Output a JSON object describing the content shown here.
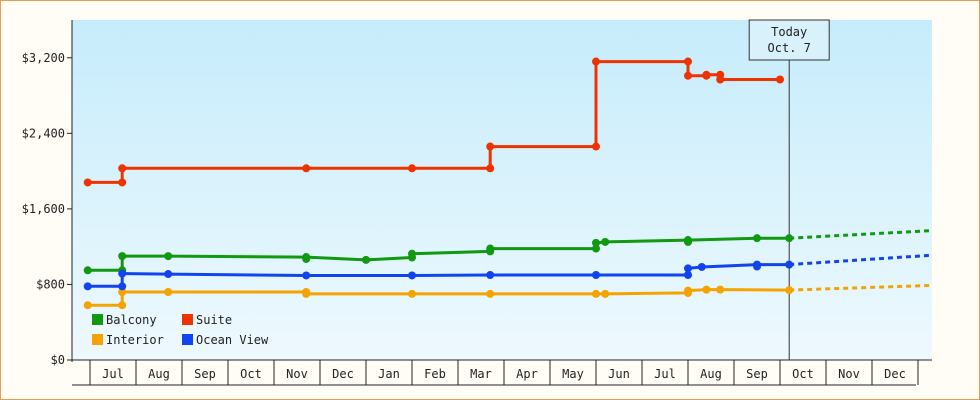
{
  "chart_data": {
    "type": "line",
    "ylim": [
      0,
      3600
    ],
    "y_ticks": [
      "$0",
      "$800",
      "$1,600",
      "$2,400",
      "$3,200"
    ],
    "y_tick_values": [
      0,
      800,
      1600,
      2400,
      3200
    ],
    "x_months": [
      "Jul",
      "Aug",
      "Sep",
      "Oct",
      "Nov",
      "Dec",
      "Jan",
      "Feb",
      "Mar",
      "Apr",
      "May",
      "Jun",
      "Jul",
      "Aug",
      "Sep",
      "Oct",
      "Nov",
      "Dec"
    ],
    "x_range_month_index": [
      -0.4,
      18.9
    ],
    "today": {
      "line1": "Today",
      "line2": "Oct. 7",
      "month_index": 15.2
    },
    "grid": false,
    "legend_placement": "bottom-left",
    "series": [
      {
        "name": "Balcony",
        "color": "#119911",
        "points": [
          [
            -0.05,
            950
          ],
          [
            0.7,
            950
          ],
          [
            0.7,
            1100
          ],
          [
            1.7,
            1100
          ],
          [
            4.7,
            1090
          ],
          [
            6.0,
            1060
          ],
          [
            7.0,
            1085
          ],
          [
            7.0,
            1125
          ],
          [
            8.7,
            1150
          ],
          [
            8.7,
            1180
          ],
          [
            11.0,
            1180
          ],
          [
            11.0,
            1240
          ],
          [
            11.2,
            1250
          ],
          [
            13.0,
            1270
          ],
          [
            14.5,
            1290
          ],
          [
            15.2,
            1290
          ]
        ],
        "markers": [
          [
            -0.05,
            950
          ],
          [
            0.7,
            950
          ],
          [
            0.7,
            1100
          ],
          [
            1.7,
            1100
          ],
          [
            4.7,
            1090
          ],
          [
            4.7,
            1070
          ],
          [
            6.0,
            1060
          ],
          [
            7.0,
            1085
          ],
          [
            7.0,
            1125
          ],
          [
            8.7,
            1150
          ],
          [
            8.7,
            1180
          ],
          [
            11.0,
            1180
          ],
          [
            11.0,
            1240
          ],
          [
            11.2,
            1250
          ],
          [
            13.0,
            1270
          ],
          [
            13.0,
            1250
          ],
          [
            14.5,
            1290
          ],
          [
            15.2,
            1290
          ]
        ],
        "forecast": [
          [
            15.2,
            1290
          ],
          [
            18.9,
            1370
          ]
        ]
      },
      {
        "name": "Suite",
        "color": "#ee3300",
        "points": [
          [
            -0.05,
            1880
          ],
          [
            0.7,
            1880
          ],
          [
            0.7,
            2030
          ],
          [
            4.7,
            2030
          ],
          [
            7.0,
            2030
          ],
          [
            8.7,
            2030
          ],
          [
            8.7,
            2260
          ],
          [
            11.0,
            2260
          ],
          [
            11.0,
            3160
          ],
          [
            13.0,
            3160
          ],
          [
            13.0,
            3010
          ],
          [
            13.4,
            3010
          ],
          [
            13.4,
            3020
          ],
          [
            13.7,
            3020
          ],
          [
            13.7,
            2970
          ],
          [
            15.0,
            2970
          ]
        ],
        "markers": [
          [
            -0.05,
            1880
          ],
          [
            0.7,
            1880
          ],
          [
            0.7,
            2030
          ],
          [
            4.7,
            2030
          ],
          [
            7.0,
            2030
          ],
          [
            8.7,
            2030
          ],
          [
            8.7,
            2260
          ],
          [
            11.0,
            2260
          ],
          [
            11.0,
            3160
          ],
          [
            13.0,
            3160
          ],
          [
            13.0,
            3010
          ],
          [
            13.4,
            3010
          ],
          [
            13.4,
            3020
          ],
          [
            13.7,
            3020
          ],
          [
            13.7,
            2970
          ],
          [
            15.0,
            2970
          ]
        ],
        "forecast": []
      },
      {
        "name": "Interior",
        "color": "#f5a300",
        "points": [
          [
            -0.05,
            580
          ],
          [
            0.7,
            580
          ],
          [
            0.7,
            720
          ],
          [
            1.7,
            720
          ],
          [
            4.7,
            720
          ],
          [
            4.7,
            700
          ],
          [
            7.0,
            700
          ],
          [
            8.7,
            700
          ],
          [
            11.0,
            700
          ],
          [
            11.2,
            700
          ],
          [
            13.0,
            710
          ],
          [
            13.0,
            735
          ],
          [
            13.4,
            745
          ],
          [
            13.7,
            745
          ],
          [
            15.2,
            740
          ]
        ],
        "markers": [
          [
            -0.05,
            580
          ],
          [
            0.7,
            580
          ],
          [
            0.7,
            720
          ],
          [
            1.7,
            720
          ],
          [
            4.7,
            720
          ],
          [
            4.7,
            700
          ],
          [
            7.0,
            700
          ],
          [
            8.7,
            700
          ],
          [
            11.0,
            700
          ],
          [
            11.2,
            700
          ],
          [
            13.0,
            710
          ],
          [
            13.0,
            735
          ],
          [
            13.4,
            745
          ],
          [
            13.7,
            745
          ],
          [
            15.2,
            740
          ]
        ],
        "forecast": [
          [
            15.2,
            740
          ],
          [
            18.9,
            790
          ]
        ]
      },
      {
        "name": "Ocean View",
        "color": "#1144ee",
        "points": [
          [
            -0.05,
            780
          ],
          [
            0.7,
            780
          ],
          [
            0.7,
            915
          ],
          [
            1.7,
            910
          ],
          [
            4.7,
            895
          ],
          [
            7.0,
            895
          ],
          [
            8.7,
            900
          ],
          [
            11.0,
            900
          ],
          [
            13.0,
            900
          ],
          [
            13.0,
            970
          ],
          [
            13.3,
            985
          ],
          [
            14.5,
            1010
          ],
          [
            15.2,
            1010
          ]
        ],
        "markers": [
          [
            -0.05,
            780
          ],
          [
            0.7,
            780
          ],
          [
            0.7,
            915
          ],
          [
            1.7,
            910
          ],
          [
            4.7,
            895
          ],
          [
            7.0,
            895
          ],
          [
            8.7,
            900
          ],
          [
            11.0,
            900
          ],
          [
            13.0,
            900
          ],
          [
            13.0,
            970
          ],
          [
            13.3,
            985
          ],
          [
            14.5,
            1010
          ],
          [
            14.5,
            990
          ],
          [
            15.2,
            1010
          ]
        ],
        "forecast": [
          [
            15.2,
            1010
          ],
          [
            18.9,
            1110
          ]
        ]
      }
    ],
    "legend": [
      {
        "name": "Balcony",
        "color": "#119911"
      },
      {
        "name": "Suite",
        "color": "#ee3300"
      },
      {
        "name": "Interior",
        "color": "#f5a300"
      },
      {
        "name": "Ocean View",
        "color": "#1144ee"
      }
    ]
  }
}
